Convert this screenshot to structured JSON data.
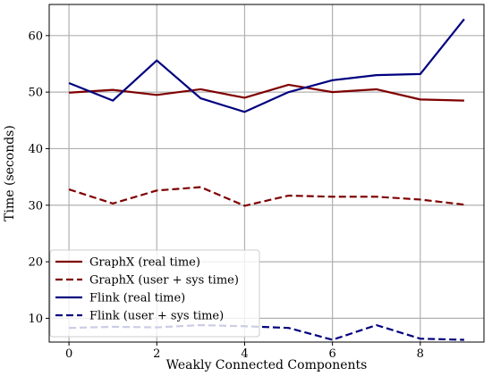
{
  "chart_data": {
    "type": "line",
    "title": "",
    "xlabel": "Weakly Connected Components",
    "ylabel": "Time (seconds)",
    "x": [
      0,
      1,
      2,
      3,
      4,
      5,
      6,
      7,
      8,
      9
    ],
    "xticks": [
      0,
      2,
      4,
      6,
      8
    ],
    "yticks": [
      10,
      20,
      30,
      40,
      50,
      60
    ],
    "xlim": [
      -0.45,
      9.45
    ],
    "ylim": [
      5.8,
      65.5
    ],
    "grid": true,
    "legend_position": "lower-left",
    "series": [
      {
        "name": "GraphX (real time)",
        "color": "#7f0000",
        "style": "solid",
        "values": [
          49.9,
          50.4,
          49.5,
          50.5,
          49.0,
          51.3,
          50.0,
          50.5,
          48.7,
          48.5
        ]
      },
      {
        "name": "GraphX (user + sys time)",
        "color": "#7f0000",
        "style": "dashed",
        "values": [
          32.8,
          30.3,
          32.6,
          33.2,
          29.9,
          31.7,
          31.5,
          31.5,
          31.0,
          30.1
        ]
      },
      {
        "name": "Flink (real time)",
        "color": "#00007f",
        "style": "solid",
        "values": [
          51.6,
          48.5,
          55.6,
          48.9,
          46.5,
          50.0,
          52.1,
          53.0,
          53.2,
          62.9
        ]
      },
      {
        "name": "Flink (user + sys time)",
        "color": "#00007f",
        "style": "dashed",
        "values": [
          8.3,
          8.5,
          8.4,
          8.8,
          8.6,
          8.3,
          6.2,
          8.8,
          6.4,
          6.2
        ]
      }
    ]
  }
}
